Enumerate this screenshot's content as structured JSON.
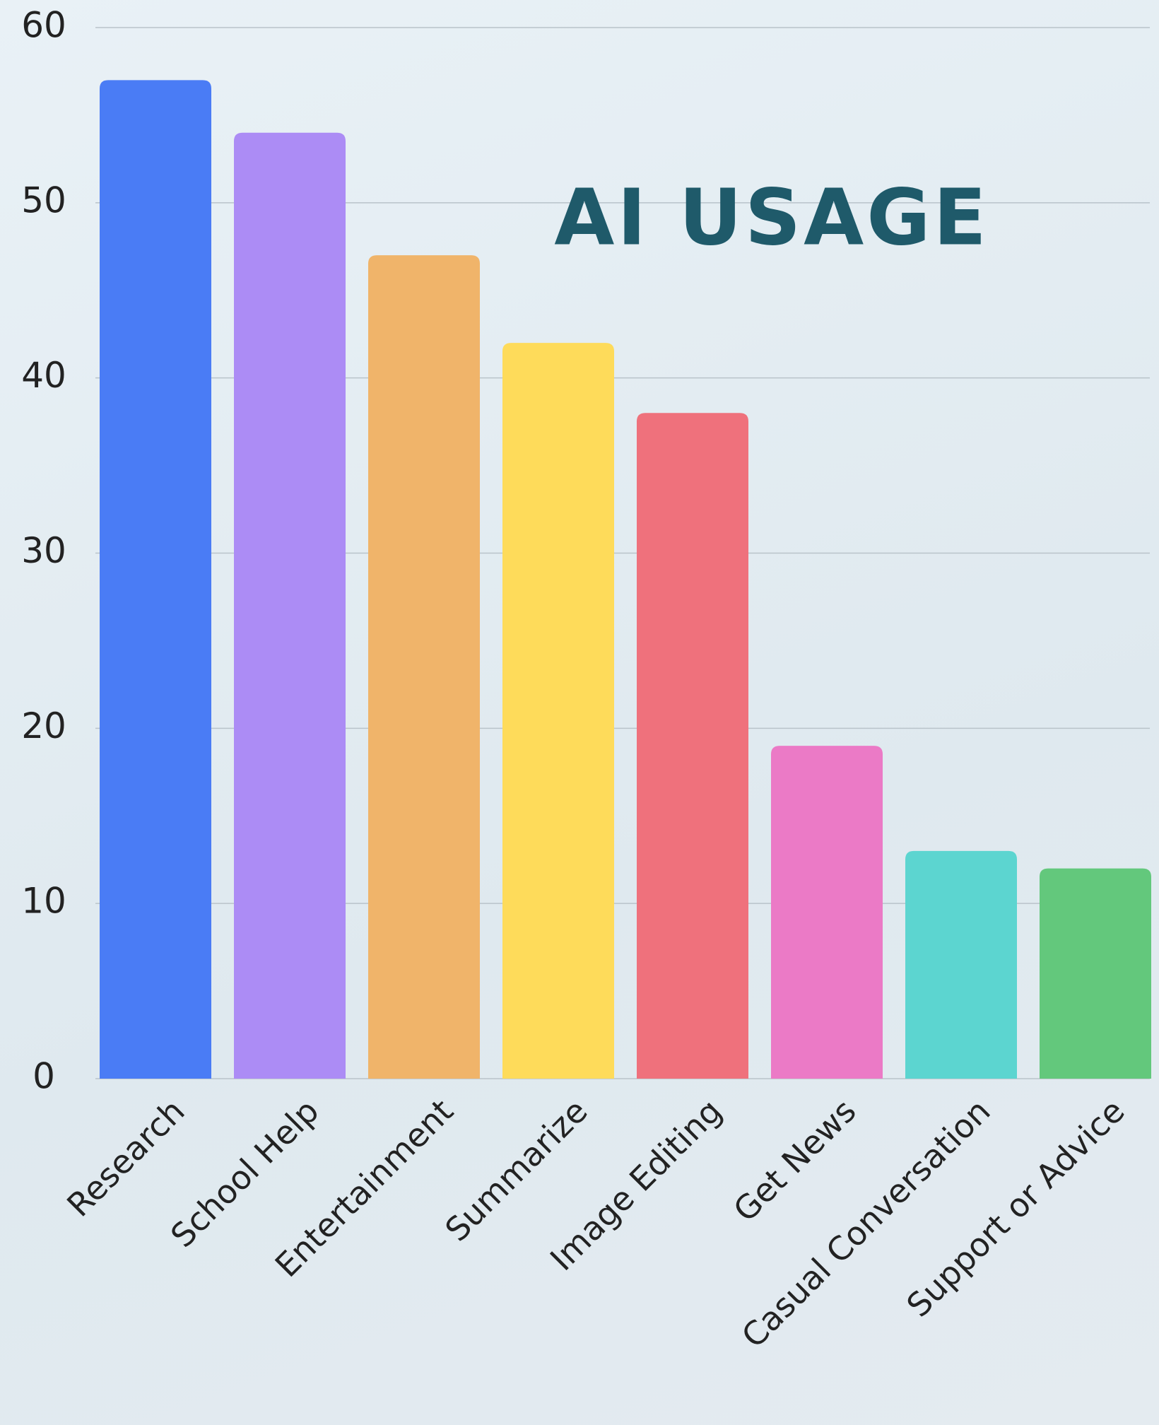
{
  "chart_data": {
    "type": "bar",
    "title": "AI USAGE",
    "categories": [
      "Research",
      "School Help",
      "Entertainment",
      "Summarize",
      "Image Editing",
      "Get News",
      "Casual Conversation",
      "Support or Advice"
    ],
    "values": [
      57,
      54,
      47,
      42,
      38,
      19,
      13,
      12
    ],
    "colors": [
      "#4a7cf5",
      "#ac8cf5",
      "#f0b46a",
      "#fedb5a",
      "#ef717c",
      "#eb7ac6",
      "#5cd5d0",
      "#63c87c"
    ],
    "ylim": [
      0,
      60
    ],
    "yticks": [
      0,
      10,
      20,
      30,
      40,
      50,
      60
    ],
    "grid": true
  }
}
